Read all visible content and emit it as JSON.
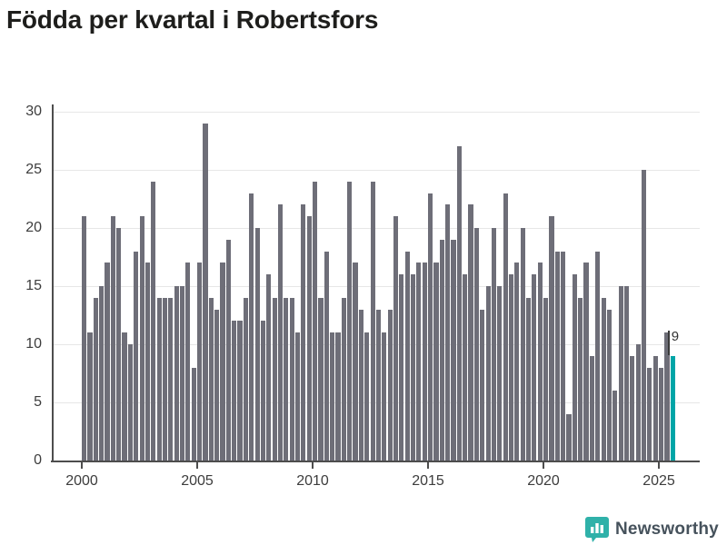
{
  "title": "Födda per kvartal i Robertsfors",
  "footer": {
    "brand": "Newsworthy"
  },
  "colors": {
    "bar": "#6e6e78",
    "highlight": "#00a5a7",
    "axis": "#4d4d4d",
    "gridline": "#e7e7e7",
    "text": "#3d3d3d",
    "title_text": "#1e1e1c",
    "brand_icon": "#2fb1a9",
    "brand_text": "#46525c"
  },
  "chart_data": {
    "type": "bar",
    "title": "Födda per kvartal i Robertsfors",
    "xlabel": "",
    "ylabel": "",
    "frequency": "quarterly",
    "x_start": "2000 Q1",
    "x_end": "2025 Q3",
    "ylim": [
      0,
      30
    ],
    "grid": true,
    "legend_position": "none",
    "yticks": [
      0,
      5,
      10,
      15,
      20,
      25,
      30
    ],
    "xticks": [
      {
        "label": "2000",
        "quarter_index": 0
      },
      {
        "label": "2005",
        "quarter_index": 20
      },
      {
        "label": "2010",
        "quarter_index": 40
      },
      {
        "label": "2015",
        "quarter_index": 60
      },
      {
        "label": "2020",
        "quarter_index": 80
      },
      {
        "label": "2025",
        "quarter_index": 100
      }
    ],
    "values": [
      21,
      11,
      14,
      15,
      17,
      21,
      20,
      11,
      10,
      18,
      21,
      17,
      24,
      14,
      14,
      14,
      15,
      15,
      17,
      8,
      17,
      29,
      14,
      13,
      17,
      19,
      12,
      12,
      14,
      23,
      20,
      12,
      16,
      14,
      22,
      14,
      14,
      11,
      22,
      21,
      24,
      14,
      18,
      11,
      11,
      14,
      24,
      17,
      13,
      11,
      24,
      13,
      11,
      13,
      21,
      16,
      18,
      16,
      17,
      17,
      23,
      17,
      19,
      22,
      19,
      27,
      16,
      22,
      20,
      13,
      15,
      20,
      15,
      23,
      16,
      17,
      20,
      14,
      16,
      17,
      14,
      21,
      18,
      18,
      4,
      16,
      14,
      17,
      9,
      18,
      14,
      13,
      6,
      15,
      15,
      9,
      10,
      25,
      8,
      9,
      8,
      11,
      9
    ],
    "highlight_last": {
      "value": 9,
      "label": "9"
    }
  }
}
